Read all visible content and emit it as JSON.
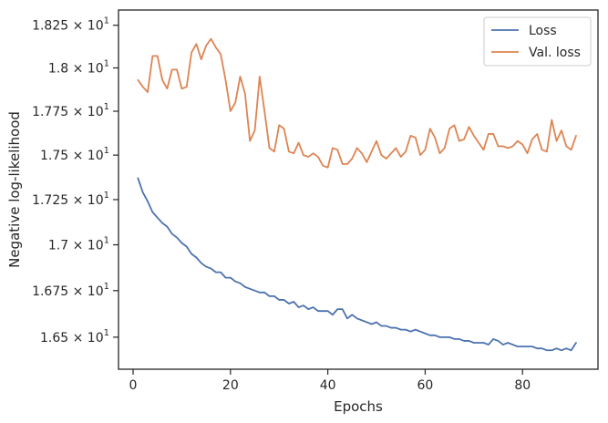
{
  "chart_data": {
    "type": "line",
    "xlabel": "Epochs",
    "ylabel": "Negative log-likelihood",
    "xlim": [
      -3,
      95.5
    ],
    "ylim": [
      16.33,
      18.34
    ],
    "y_scale": "log",
    "grid": false,
    "legend_position": "top-right",
    "x_ticks": [
      0,
      20,
      40,
      60,
      80
    ],
    "x_tick_labels": [
      "0",
      "20",
      "40",
      "60",
      "80"
    ],
    "y_ticks": [
      16.5,
      16.75,
      17.0,
      17.25,
      17.5,
      17.75,
      18.0,
      18.25
    ],
    "y_tick_labels": [
      {
        "mantissa": "1.65",
        "times": "×",
        "base": "10",
        "exp": "1"
      },
      {
        "mantissa": "1.675",
        "times": "×",
        "base": "10",
        "exp": "1"
      },
      {
        "mantissa": "1.7",
        "times": "×",
        "base": "10",
        "exp": "1"
      },
      {
        "mantissa": "1.725",
        "times": "×",
        "base": "10",
        "exp": "1"
      },
      {
        "mantissa": "1.75",
        "times": "×",
        "base": "10",
        "exp": "1"
      },
      {
        "mantissa": "1.775",
        "times": "×",
        "base": "10",
        "exp": "1"
      },
      {
        "mantissa": "1.8",
        "times": "×",
        "base": "10",
        "exp": "1"
      },
      {
        "mantissa": "1.825",
        "times": "×",
        "base": "10",
        "exp": "1"
      }
    ],
    "series": [
      {
        "name": "Loss",
        "color": "#4c72b0",
        "x": [
          1,
          2,
          3,
          4,
          5,
          6,
          7,
          8,
          9,
          10,
          11,
          12,
          13,
          14,
          15,
          16,
          17,
          18,
          19,
          20,
          21,
          22,
          23,
          24,
          25,
          26,
          27,
          28,
          29,
          30,
          31,
          32,
          33,
          34,
          35,
          36,
          37,
          38,
          39,
          40,
          41,
          42,
          43,
          44,
          45,
          46,
          47,
          48,
          49,
          50,
          51,
          52,
          53,
          54,
          55,
          56,
          57,
          58,
          59,
          60,
          61,
          62,
          63,
          64,
          65,
          66,
          67,
          68,
          69,
          70,
          71,
          72,
          73,
          74,
          75,
          76,
          77,
          78,
          79,
          80,
          81,
          82,
          83,
          84,
          85,
          86,
          87,
          88,
          89,
          90,
          91
        ],
        "values": [
          17.37,
          17.29,
          17.24,
          17.18,
          17.15,
          17.12,
          17.1,
          17.06,
          17.04,
          17.01,
          16.99,
          16.95,
          16.93,
          16.9,
          16.88,
          16.87,
          16.85,
          16.85,
          16.82,
          16.82,
          16.8,
          16.79,
          16.77,
          16.76,
          16.75,
          16.74,
          16.74,
          16.72,
          16.72,
          16.7,
          16.7,
          16.68,
          16.69,
          16.66,
          16.67,
          16.65,
          16.66,
          16.64,
          16.64,
          16.64,
          16.62,
          16.65,
          16.65,
          16.6,
          16.62,
          16.6,
          16.59,
          16.58,
          16.57,
          16.58,
          16.56,
          16.56,
          16.55,
          16.55,
          16.54,
          16.54,
          16.53,
          16.54,
          16.53,
          16.52,
          16.51,
          16.51,
          16.5,
          16.5,
          16.5,
          16.49,
          16.49,
          16.48,
          16.48,
          16.47,
          16.47,
          16.47,
          16.46,
          16.49,
          16.48,
          16.46,
          16.47,
          16.46,
          16.45,
          16.45,
          16.45,
          16.45,
          16.44,
          16.44,
          16.43,
          16.43,
          16.44,
          16.43,
          16.44,
          16.43,
          16.47
        ]
      },
      {
        "name": "Val. loss",
        "color": "#dd8452",
        "x": [
          1,
          2,
          3,
          4,
          5,
          6,
          7,
          8,
          9,
          10,
          11,
          12,
          13,
          14,
          15,
          16,
          17,
          18,
          19,
          20,
          21,
          22,
          23,
          24,
          25,
          26,
          27,
          28,
          29,
          30,
          31,
          32,
          33,
          34,
          35,
          36,
          37,
          38,
          39,
          40,
          41,
          42,
          43,
          44,
          45,
          46,
          47,
          48,
          49,
          50,
          51,
          52,
          53,
          54,
          55,
          56,
          57,
          58,
          59,
          60,
          61,
          62,
          63,
          64,
          65,
          66,
          67,
          68,
          69,
          70,
          71,
          72,
          73,
          74,
          75,
          76,
          77,
          78,
          79,
          80,
          81,
          82,
          83,
          84,
          85,
          86,
          87,
          88,
          89,
          90,
          91
        ],
        "values": [
          17.93,
          17.89,
          17.86,
          18.07,
          18.07,
          17.93,
          17.88,
          17.99,
          17.99,
          17.88,
          17.89,
          18.09,
          18.14,
          18.05,
          18.13,
          18.17,
          18.12,
          18.08,
          17.93,
          17.75,
          17.8,
          17.95,
          17.85,
          17.58,
          17.64,
          17.95,
          17.75,
          17.54,
          17.52,
          17.67,
          17.65,
          17.52,
          17.51,
          17.57,
          17.5,
          17.49,
          17.51,
          17.49,
          17.44,
          17.43,
          17.54,
          17.53,
          17.45,
          17.45,
          17.48,
          17.54,
          17.51,
          17.46,
          17.52,
          17.58,
          17.5,
          17.48,
          17.51,
          17.54,
          17.49,
          17.52,
          17.61,
          17.6,
          17.5,
          17.53,
          17.65,
          17.6,
          17.51,
          17.54,
          17.65,
          17.67,
          17.58,
          17.59,
          17.66,
          17.61,
          17.57,
          17.53,
          17.62,
          17.62,
          17.55,
          17.55,
          17.54,
          17.55,
          17.58,
          17.56,
          17.51,
          17.59,
          17.62,
          17.53,
          17.52,
          17.7,
          17.58,
          17.64,
          17.55,
          17.53,
          17.61
        ]
      }
    ]
  }
}
